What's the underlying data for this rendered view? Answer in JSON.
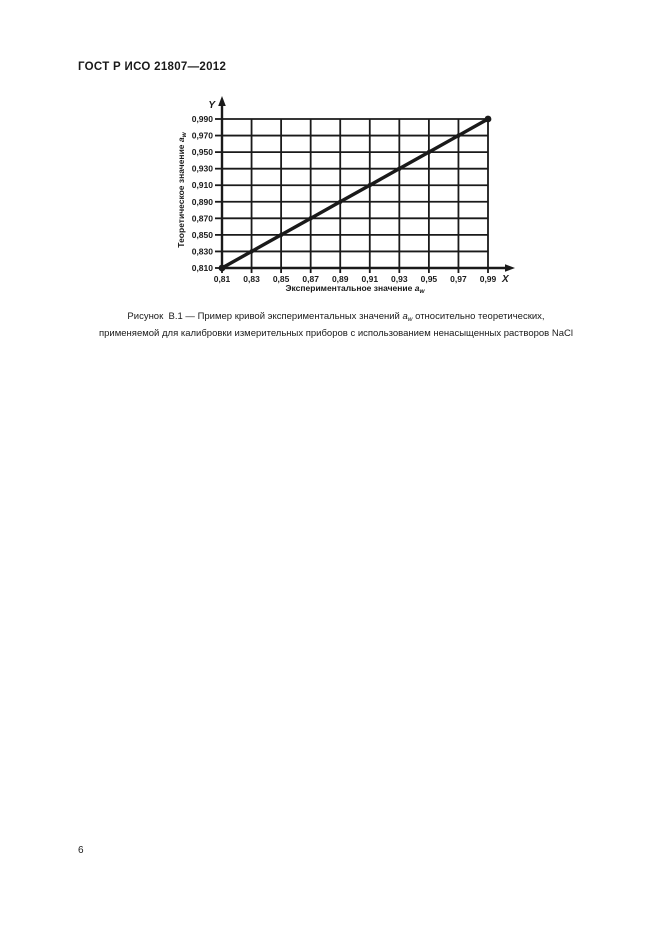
{
  "page": {
    "header": "ГОСТ Р ИСО 21807—2012",
    "page_number": "6"
  },
  "figure": {
    "caption_line1_text": "Рисунок  В.1 — Пример кривой экспериментальных значений ",
    "caption_symbol": "a",
    "caption_symbol_sub": "w",
    "caption_line1_end": " относительно теоретических,",
    "caption_line2": "применяемой для калибровки измерительных приборов с использованием ненасыщенных растворов NaCl"
  },
  "chart_data": {
    "type": "line",
    "title": "",
    "grid": "on",
    "legend": "none",
    "x_axis_letter": "X",
    "y_axis_letter": "Y",
    "xlabel_text": "Экспериментальное значение ",
    "xlabel_symbol": "a",
    "xlabel_sub": "w",
    "ylabel_text": "Теоретическое значение ",
    "ylabel_symbol": "a",
    "ylabel_sub": "w",
    "xlim": [
      0.81,
      0.99
    ],
    "ylim": [
      0.81,
      0.99
    ],
    "x_tick_labels": [
      "0,81",
      "0,83",
      "0,85",
      "0,87",
      "0,89",
      "0,91",
      "0,93",
      "0,95",
      "0,97",
      "0,99"
    ],
    "x_tick_values": [
      0.81,
      0.83,
      0.85,
      0.87,
      0.89,
      0.91,
      0.93,
      0.95,
      0.97,
      0.99
    ],
    "y_tick_labels": [
      "0,990",
      "0,970",
      "0,950",
      "0,930",
      "0,910",
      "0,890",
      "0,870",
      "0,850",
      "0,830",
      "0,810"
    ],
    "y_tick_values": [
      0.99,
      0.97,
      0.95,
      0.93,
      0.91,
      0.89,
      0.87,
      0.85,
      0.83,
      0.81
    ],
    "line_color": "#1a1a1a",
    "series": [
      {
        "name": "calibration-line",
        "points": [
          [
            0.81,
            0.81
          ],
          [
            0.83,
            0.83
          ],
          [
            0.85,
            0.85
          ],
          [
            0.87,
            0.87
          ],
          [
            0.89,
            0.89
          ],
          [
            0.91,
            0.91
          ],
          [
            0.93,
            0.93
          ],
          [
            0.95,
            0.95
          ],
          [
            0.97,
            0.97
          ],
          [
            0.99,
            0.99
          ]
        ],
        "marker": "dot",
        "endpoint_marker": "large-dot"
      }
    ]
  }
}
